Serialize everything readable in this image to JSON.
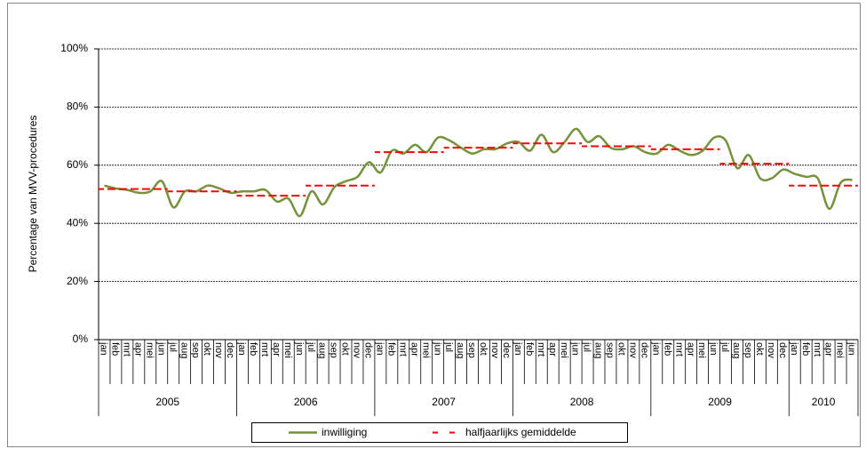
{
  "chart_data": {
    "type": "line",
    "y_label": "Percentage van MVV-procedures",
    "category_groups": [
      {
        "label": "2005",
        "categories": [
          "jan",
          "feb",
          "mrt",
          "apr",
          "mei",
          "jun",
          "jul",
          "aug",
          "sep",
          "okt",
          "nov",
          "dec"
        ]
      },
      {
        "label": "2006",
        "categories": [
          "jan",
          "feb",
          "mrt",
          "apr",
          "mei",
          "jun",
          "jul",
          "aug",
          "sep",
          "okt",
          "nov",
          "dec"
        ]
      },
      {
        "label": "2007",
        "categories": [
          "jan",
          "feb",
          "mrt",
          "apr",
          "mei",
          "jun",
          "jul",
          "aug",
          "sep",
          "okt",
          "nov",
          "dec"
        ]
      },
      {
        "label": "2008",
        "categories": [
          "jan",
          "feb",
          "mrt",
          "apr",
          "mei",
          "jun",
          "jul",
          "aug",
          "sep",
          "okt",
          "nov",
          "dec"
        ]
      },
      {
        "label": "2009",
        "categories": [
          "jan",
          "feb",
          "mrt",
          "apr",
          "mei",
          "jun",
          "jul",
          "aug",
          "sep",
          "okt",
          "nov",
          "dec"
        ]
      },
      {
        "label": "2010",
        "categories": [
          "jan",
          "feb",
          "mrt",
          "apr",
          "mei",
          "jun"
        ]
      }
    ],
    "series": [
      {
        "name": "inwilliging",
        "color": "#76923c",
        "style": "smooth",
        "values": [
          53,
          52,
          51.5,
          50.5,
          51,
          54.5,
          45.5,
          51,
          51,
          53,
          52,
          50.5,
          51,
          51,
          51.5,
          47.5,
          48.5,
          42.5,
          51,
          46.5,
          52.5,
          54.5,
          56,
          61,
          57.5,
          65,
          64,
          67,
          64.5,
          69.5,
          68.5,
          66,
          64,
          65.5,
          65.5,
          67.5,
          68,
          65,
          70.5,
          64.5,
          68,
          72.5,
          68,
          70,
          66,
          65.5,
          66.5,
          64.5,
          64,
          67,
          65,
          63.5,
          65,
          69.5,
          68.5,
          59,
          63.5,
          55.5,
          55.5,
          58.5,
          57,
          56,
          55.5,
          45,
          54,
          55
        ]
      },
      {
        "name": "halfjaarlijks gemiddelde",
        "color": "#ff0000",
        "style": "step",
        "values": [
          51.8,
          51.8,
          51.8,
          51.8,
          51.8,
          51.8,
          51,
          51,
          51,
          51,
          51,
          51,
          49.5,
          49.5,
          49.5,
          49.5,
          49.5,
          49.5,
          53,
          53,
          53,
          53,
          53,
          53,
          64.5,
          64.5,
          64.5,
          64.5,
          64.5,
          64.5,
          66,
          66,
          66,
          66,
          66,
          66,
          67.5,
          67.5,
          67.5,
          67.5,
          67.5,
          67.5,
          66.5,
          66.5,
          66.5,
          66.5,
          66.5,
          66.5,
          65.5,
          65.5,
          65.5,
          65.5,
          65.5,
          65.5,
          60.5,
          60.5,
          60.5,
          60.5,
          60.5,
          60.5,
          53,
          53,
          53,
          53,
          53,
          53
        ]
      }
    ],
    "ylim": [
      0,
      100
    ],
    "yticks": [
      {
        "value": 0,
        "label": "0%"
      },
      {
        "value": 20,
        "label": "20%"
      },
      {
        "value": 40,
        "label": "40%"
      },
      {
        "value": 60,
        "label": "60%"
      },
      {
        "value": 80,
        "label": "80%"
      },
      {
        "value": 100,
        "label": "100%"
      }
    ],
    "grid": true,
    "legend": "bottom"
  }
}
